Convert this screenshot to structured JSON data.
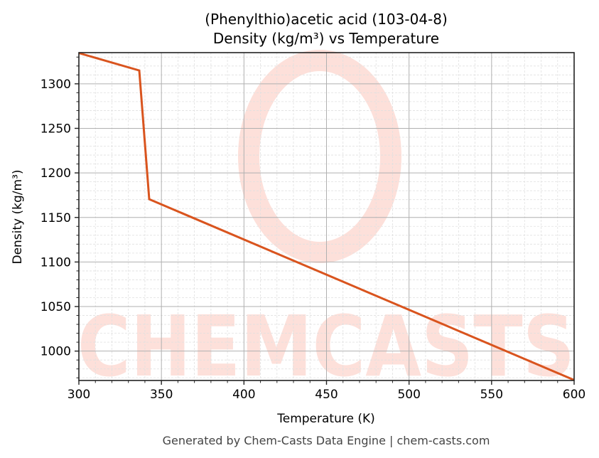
{
  "title_line1": "(Phenylthio)acetic acid (103-04-8)",
  "title_line2": "Density (kg/m³) vs Temperature",
  "xlabel": "Temperature (K)",
  "ylabel": "Density (kg/m³)",
  "footer": "Generated by Chem-Casts Data Engine | chem-casts.com",
  "watermark": "CHEMCASTS",
  "colors": {
    "line": "#d9541e",
    "watermark": "#fde0da",
    "major_grid": "#b0b0b0",
    "minor_grid": "#e0e0e0"
  },
  "chart_data": {
    "type": "line",
    "title": "(Phenylthio)acetic acid (103-04-8) Density (kg/m³) vs Temperature",
    "xlabel": "Temperature (K)",
    "ylabel": "Density (kg/m³)",
    "xlim": [
      300,
      600
    ],
    "ylim": [
      967,
      1335
    ],
    "x_ticks": [
      300,
      350,
      400,
      450,
      500,
      550,
      600
    ],
    "y_ticks": [
      1000,
      1050,
      1100,
      1150,
      1200,
      1250,
      1300
    ],
    "grid": true,
    "series": [
      {
        "name": "Density",
        "x": [
          300,
          336.6,
          342.6,
          600
        ],
        "values": [
          1334.5,
          1315,
          1170.5,
          967.5
        ]
      }
    ]
  }
}
